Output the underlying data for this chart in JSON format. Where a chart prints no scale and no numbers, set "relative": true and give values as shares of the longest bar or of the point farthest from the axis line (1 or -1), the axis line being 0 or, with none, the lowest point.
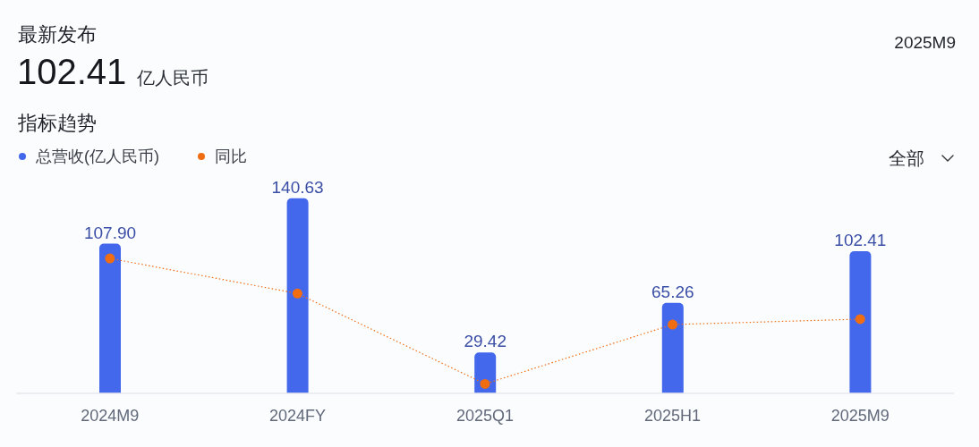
{
  "chart_data": [
    {
      "type": "bar",
      "title": "指标趋势",
      "annotations": [
        "最新发布",
        "102.41",
        "亿人民币",
        "2025M9",
        "全部"
      ],
      "categories": [
        "2024M9",
        "2024FY",
        "2025Q1",
        "2025H1",
        "2025M9"
      ],
      "series": [
        {
          "name": "总营收(亿人民币)",
          "color": "#4468ec",
          "values": [
            107.9,
            140.63,
            29.42,
            65.26,
            102.41
          ],
          "value_labels": [
            "107.90",
            "140.63",
            "29.42",
            "65.26",
            "102.41"
          ]
        }
      ],
      "legend": "top left"
    },
    {
      "type": "line",
      "categories": [
        null,
        null,
        null,
        null,
        null
      ],
      "series": [
        {
          "name": "同比",
          "color": "#f06d12",
          "values": [
            1,
            0.74,
            0.07,
            0.51,
            0.55
          ]
        }
      ],
      "relative": true,
      "marker": "circle",
      "line_style": "dotted",
      "legend": "top left"
    }
  ]
}
